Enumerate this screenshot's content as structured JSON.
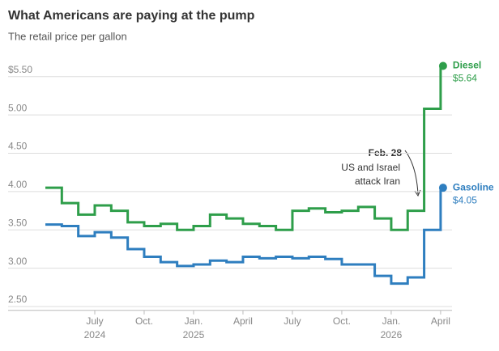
{
  "chart_data": {
    "type": "line",
    "title": "What Americans are paying at the pump",
    "subtitle": "The retail price per gallon",
    "x": [
      "2024-04",
      "2024-05",
      "2024-06",
      "2024-07",
      "2024-08",
      "2024-09",
      "2024-10",
      "2024-11",
      "2024-12",
      "2025-01",
      "2025-02",
      "2025-03",
      "2025-04",
      "2025-05",
      "2025-06",
      "2025-07",
      "2025-08",
      "2025-09",
      "2025-10",
      "2025-11",
      "2025-12",
      "2026-01",
      "2026-02",
      "2026-03",
      "2026-04"
    ],
    "series": [
      {
        "name": "Diesel",
        "color": "#2e9e4a",
        "values": [
          4.05,
          3.85,
          3.7,
          3.82,
          3.75,
          3.6,
          3.55,
          3.58,
          3.5,
          3.55,
          3.7,
          3.65,
          3.58,
          3.55,
          3.5,
          3.75,
          3.78,
          3.73,
          3.75,
          3.8,
          3.65,
          3.5,
          3.75,
          5.08,
          5.64
        ],
        "value_labels": [
          null,
          null,
          null,
          null,
          null,
          null,
          null,
          null,
          null,
          null,
          null,
          null,
          null,
          null,
          null,
          null,
          null,
          null,
          null,
          null,
          null,
          null,
          null,
          null,
          "$5.64"
        ]
      },
      {
        "name": "Gasoline",
        "color": "#2e7ebf",
        "values": [
          3.57,
          3.55,
          3.42,
          3.47,
          3.4,
          3.25,
          3.15,
          3.08,
          3.03,
          3.05,
          3.1,
          3.08,
          3.15,
          3.13,
          3.15,
          3.13,
          3.15,
          3.12,
          3.05,
          3.05,
          2.9,
          2.8,
          2.88,
          3.5,
          4.05
        ],
        "value_labels": [
          null,
          null,
          null,
          null,
          null,
          null,
          null,
          null,
          null,
          null,
          null,
          null,
          null,
          null,
          null,
          null,
          null,
          null,
          null,
          null,
          null,
          null,
          null,
          null,
          "$4.05"
        ]
      }
    ],
    "ylim": [
      2.45,
      5.7
    ],
    "yticks": [
      {
        "value": 2.5,
        "label": "2.50"
      },
      {
        "value": 3,
        "label": "3.00"
      },
      {
        "value": 3.5,
        "label": "3.50"
      },
      {
        "value": 4,
        "label": "4.00"
      },
      {
        "value": 4.5,
        "label": "4.50"
      },
      {
        "value": 5,
        "label": "5.00"
      },
      {
        "value": 5.5,
        "label": "$5.50"
      }
    ],
    "xticks": [
      {
        "value": "2024-07",
        "label": "July"
      },
      {
        "value": "2024-10",
        "label": "Oct."
      },
      {
        "value": "2025-01",
        "label": "Jan."
      },
      {
        "value": "2025-04",
        "label": "April"
      },
      {
        "value": "2025-07",
        "label": "July"
      },
      {
        "value": "2025-10",
        "label": "Oct."
      },
      {
        "value": "2026-01",
        "label": "Jan."
      },
      {
        "value": "2026-04",
        "label": "April"
      }
    ],
    "xtick_years": [
      {
        "value": "2024-07",
        "label": "2024"
      },
      {
        "value": "2025-01",
        "label": "2025"
      },
      {
        "value": "2026-01",
        "label": "2026"
      }
    ],
    "grid": true,
    "annotation": {
      "title": "Feb. 28",
      "lines": [
        "US and Israel",
        "attack Iran"
      ]
    }
  }
}
